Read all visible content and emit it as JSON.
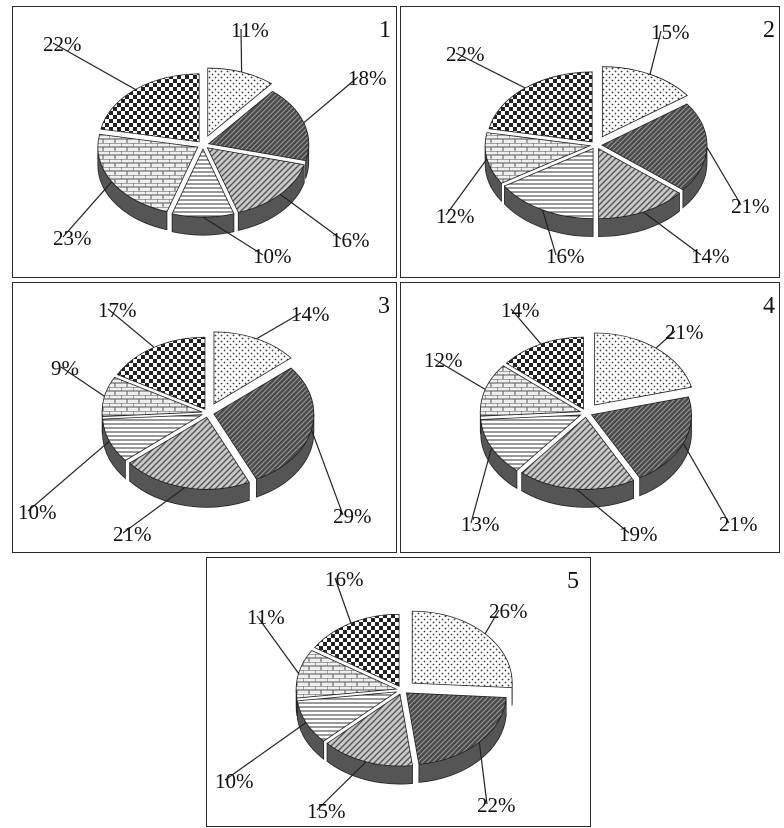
{
  "chart_data": [
    {
      "type": "pie",
      "number": "1",
      "values": [
        11,
        18,
        16,
        10,
        23,
        22
      ],
      "labels": [
        "11%",
        "18%",
        "16%",
        "10%",
        "23%",
        "22%"
      ]
    },
    {
      "type": "pie",
      "number": "2",
      "values": [
        15,
        21,
        14,
        16,
        12,
        22
      ],
      "labels": [
        "15%",
        "21%",
        "14%",
        "16%",
        "12%",
        "22%"
      ]
    },
    {
      "type": "pie",
      "number": "3",
      "values": [
        14,
        29,
        21,
        10,
        9,
        17
      ],
      "labels": [
        "14%",
        "29%",
        "21%",
        "10%",
        "9%",
        "17%"
      ]
    },
    {
      "type": "pie",
      "number": "4",
      "values": [
        21,
        21,
        19,
        13,
        12,
        14
      ],
      "labels": [
        "21%",
        "21%",
        "19%",
        "13%",
        "12%",
        "14%"
      ]
    },
    {
      "type": "pie",
      "number": "5",
      "values": [
        26,
        22,
        15,
        10,
        11,
        16
      ],
      "labels": [
        "26%",
        "22%",
        "15%",
        "10%",
        "11%",
        "16%"
      ]
    }
  ],
  "colors": {
    "border": "#2a2a2a",
    "pattern_dark": "#3a3a3a",
    "pattern_light": "#ffffff",
    "side": "#555555"
  },
  "patterns": [
    "dots-light",
    "dense-dark",
    "diagonal-hatch",
    "horizontal-lines",
    "brick",
    "checker"
  ]
}
